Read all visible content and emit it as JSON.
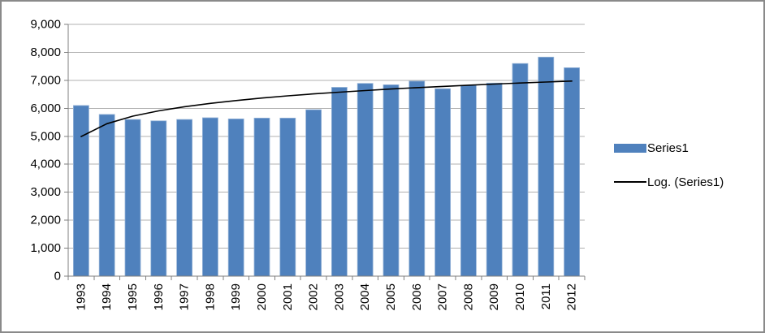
{
  "chart_data": {
    "type": "bar",
    "title": "",
    "xlabel": "",
    "ylabel": "",
    "categories": [
      "1993",
      "1994",
      "1995",
      "1996",
      "1997",
      "1998",
      "1999",
      "2000",
      "2001",
      "2002",
      "2003",
      "2004",
      "2005",
      "2006",
      "2007",
      "2008",
      "2009",
      "2010",
      "2011",
      "2012"
    ],
    "series": [
      {
        "name": "Series1",
        "values": [
          6100,
          5780,
          5600,
          5550,
          5600,
          5660,
          5620,
          5650,
          5650,
          5950,
          6750,
          6890,
          6840,
          6970,
          6700,
          6820,
          6900,
          7600,
          7830,
          7450
        ]
      }
    ],
    "trendline": {
      "name": "Log. (Series1)",
      "type": "logarithmic",
      "values": [
        4990,
        5449,
        5718,
        5908,
        6055,
        6176,
        6278,
        6366,
        6445,
        6514,
        6577,
        6635,
        6688,
        6737,
        6782,
        6825,
        6865,
        6903,
        6939,
        6973
      ]
    },
    "ylim": [
      0,
      9000
    ],
    "ytick_values": [
      0,
      1000,
      2000,
      3000,
      4000,
      5000,
      6000,
      7000,
      8000,
      9000
    ],
    "ytick_labels": [
      "0",
      "1,000",
      "2,000",
      "3,000",
      "4,000",
      "5,000",
      "6,000",
      "7,000",
      "8,000",
      "9,000"
    ],
    "grid": true,
    "legend_position": "right",
    "x_label_rotation": -90
  },
  "legend": {
    "entries": [
      {
        "label": "Series1",
        "swatch": "bar"
      },
      {
        "label": "Log. (Series1)",
        "swatch": "line"
      }
    ]
  },
  "colors": {
    "bar": "#4F81BD",
    "bar_border": "#95B3D7",
    "trendline": "#000000",
    "gridline": "#B0B0B0",
    "axis": "#7F7F7F",
    "text": "#000000",
    "frame_border": "#8A8A8A",
    "background": "#FFFFFF"
  }
}
